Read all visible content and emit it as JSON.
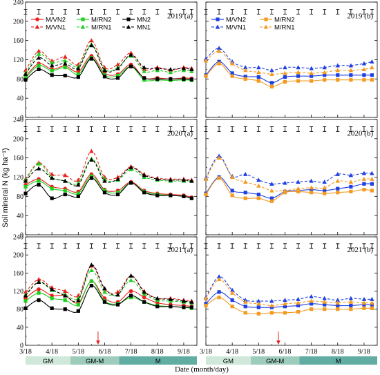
{
  "figure": {
    "ylabel": "Soil mineral N (kg ha⁻¹)",
    "xlabel": "Date (month/day)",
    "stage_band": [
      {
        "label": "GM",
        "from": 0,
        "to": 1.7,
        "color": "#cfe8da"
      },
      {
        "label": "GM-M",
        "from": 1.7,
        "to": 3.55,
        "color": "#9dccbd"
      },
      {
        "label": "M",
        "from": 3.55,
        "to": 6.5,
        "color": "#62ada3"
      }
    ]
  },
  "chart_data": [
    {
      "type": "line",
      "panel": "a",
      "title": "2019 (a)",
      "xticks": [
        "3/18",
        "4/18",
        "5/18",
        "6/18",
        "7/18",
        "8/18",
        "9/18"
      ],
      "xlim": [
        0,
        6.5
      ],
      "yticks": [
        0,
        40,
        80,
        120,
        160,
        200,
        240
      ],
      "ylim": [
        0,
        240
      ],
      "legend": "top-left",
      "x": [
        0,
        0.5,
        1,
        1.5,
        2,
        2.5,
        3,
        3.5,
        4,
        4.5,
        5,
        5.5,
        6,
        6.3
      ],
      "errorbars": {
        "x": [
          0,
          0.5,
          1,
          1.5,
          2,
          2.5,
          3,
          3.5,
          4,
          4.5,
          5,
          5.5,
          6,
          6.3
        ],
        "half": 5,
        "center": 220
      },
      "series": [
        {
          "name": "M/VN2",
          "values": [
            85,
            112,
            100,
            107,
            95,
            128,
            92,
            90,
            110,
            82,
            82,
            80,
            82,
            81
          ],
          "color": "#e8201e",
          "marker": "circle",
          "dashed": false
        },
        {
          "name": "M/RN2",
          "values": [
            82,
            108,
            97,
            104,
            90,
            124,
            88,
            87,
            106,
            78,
            78,
            77,
            78,
            77
          ],
          "color": "#20d020",
          "marker": "square",
          "dashed": false
        },
        {
          "name": "MN2",
          "values": [
            78,
            100,
            88,
            87,
            84,
            122,
            85,
            82,
            106,
            82,
            80,
            80,
            80,
            79
          ],
          "color": "#000000",
          "marker": "square",
          "dashed": false
        },
        {
          "name": "M/VN1",
          "values": [
            98,
            138,
            118,
            126,
            110,
            160,
            104,
            110,
            134,
            100,
            104,
            98,
            104,
            102
          ],
          "color": "#e8201e",
          "marker": "triangle",
          "dashed": true
        },
        {
          "name": "M/RN1",
          "values": [
            92,
            132,
            114,
            118,
            106,
            152,
            100,
            104,
            128,
            96,
            98,
            94,
            98,
            96
          ],
          "color": "#20d020",
          "marker": "triangle",
          "dashed": true
        },
        {
          "name": "MN1",
          "values": [
            90,
            124,
            108,
            112,
            102,
            150,
            98,
            102,
            130,
            104,
            102,
            100,
            102,
            100
          ],
          "color": "#000000",
          "marker": "triangle",
          "dashed": true
        }
      ]
    },
    {
      "type": "line",
      "panel": "b",
      "title": "2019 (b)",
      "xticks": [
        "3/18",
        "4/18",
        "5/18",
        "6/18",
        "7/18",
        "8/18",
        "9/18"
      ],
      "xlim": [
        0,
        6.5
      ],
      "yticks": [
        0,
        40,
        80,
        120,
        160,
        200,
        240
      ],
      "ylim": [
        0,
        240
      ],
      "legend": "top-left",
      "x": [
        0,
        0.5,
        1,
        1.5,
        2,
        2.5,
        3,
        3.5,
        4,
        4.5,
        5,
        5.5,
        6,
        6.3
      ],
      "errorbars": {
        "x": [
          0,
          0.5,
          1,
          1.5,
          2,
          2.5,
          3,
          3.5,
          4,
          4.5,
          5,
          5.5,
          6,
          6.3
        ],
        "half": 5,
        "center": 220
      },
      "series": [
        {
          "name": "M/VN2",
          "values": [
            88,
            116,
            92,
            85,
            84,
            72,
            84,
            86,
            86,
            88,
            88,
            88,
            88,
            88
          ],
          "color": "#1f3fe0",
          "marker": "square",
          "dashed": false
        },
        {
          "name": "M/RN2",
          "values": [
            86,
            112,
            86,
            80,
            76,
            64,
            74,
            76,
            76,
            78,
            78,
            78,
            78,
            78
          ],
          "color": "#f39a21",
          "marker": "square",
          "dashed": false
        },
        {
          "name": "M/VN1",
          "values": [
            122,
            144,
            116,
            104,
            104,
            98,
            104,
            104,
            102,
            104,
            108,
            108,
            112,
            116
          ],
          "color": "#1f3fe0",
          "marker": "triangle",
          "dashed": true
        },
        {
          "name": "M/RN1",
          "values": [
            118,
            138,
            112,
            98,
            94,
            90,
            92,
            94,
            92,
            94,
            98,
            98,
            100,
            104
          ],
          "color": "#f39a21",
          "marker": "triangle",
          "dashed": true
        }
      ]
    },
    {
      "type": "line",
      "panel": "a",
      "title": "2020 (a)",
      "xticks": [
        "3/18",
        "4/18",
        "5/18",
        "6/18",
        "7/18",
        "8/18",
        "9/18"
      ],
      "xlim": [
        0,
        6.5
      ],
      "yticks": [
        0,
        40,
        80,
        120,
        160,
        200,
        240
      ],
      "ylim": [
        0,
        240
      ],
      "x": [
        0,
        0.5,
        1,
        1.5,
        2,
        2.5,
        3,
        3.5,
        4,
        4.5,
        5,
        5.5,
        6,
        6.3
      ],
      "errorbars": {
        "x": [
          0,
          0.5,
          1,
          1.5,
          2,
          2.5,
          3,
          3.5,
          4,
          4.5,
          5,
          5.5,
          6,
          6.3
        ],
        "half": 5,
        "center": 220
      },
      "series": [
        {
          "name": "M/VN2",
          "values": [
            104,
            116,
            100,
            96,
            90,
            126,
            94,
            92,
            110,
            92,
            86,
            84,
            82,
            78
          ],
          "color": "#e8201e",
          "marker": "circle",
          "dashed": false
        },
        {
          "name": "M/RN2",
          "values": [
            100,
            112,
            96,
            92,
            86,
            122,
            92,
            88,
            108,
            90,
            84,
            82,
            80,
            76
          ],
          "color": "#20d020",
          "marker": "square",
          "dashed": false
        },
        {
          "name": "MN2",
          "values": [
            86,
            104,
            76,
            84,
            80,
            118,
            88,
            84,
            108,
            88,
            82,
            82,
            80,
            76
          ],
          "color": "#000000",
          "marker": "square",
          "dashed": false
        },
        {
          "name": "M/VN1",
          "values": [
            116,
            150,
            126,
            124,
            114,
            174,
            120,
            120,
            142,
            126,
            118,
            116,
            116,
            114
          ],
          "color": "#e8201e",
          "marker": "triangle",
          "dashed": true
        },
        {
          "name": "M/RN1",
          "values": [
            114,
            148,
            120,
            112,
            108,
            158,
            116,
            114,
            136,
            120,
            114,
            112,
            112,
            112
          ],
          "color": "#20d020",
          "marker": "triangle",
          "dashed": true
        },
        {
          "name": "MN1",
          "values": [
            112,
            138,
            118,
            112,
            104,
            156,
            112,
            116,
            140,
            124,
            116,
            114,
            114,
            112
          ],
          "color": "#000000",
          "marker": "triangle",
          "dashed": true
        }
      ]
    },
    {
      "type": "line",
      "panel": "b",
      "title": "2020 (b)",
      "xticks": [
        "3/18",
        "4/18",
        "5/18",
        "6/18",
        "7/18",
        "8/18",
        "9/18"
      ],
      "xlim": [
        0,
        6.5
      ],
      "yticks": [
        0,
        40,
        80,
        120,
        160,
        200,
        240
      ],
      "ylim": [
        0,
        240
      ],
      "x": [
        0,
        0.5,
        1,
        1.5,
        2,
        2.5,
        3,
        3.5,
        4,
        4.5,
        5,
        5.5,
        6,
        6.3
      ],
      "errorbars": {
        "x": [
          0,
          0.5,
          1,
          1.5,
          2,
          2.5,
          3,
          3.5,
          4,
          4.5,
          5,
          5.5,
          6,
          6.3
        ],
        "half": 5,
        "center": 220
      },
      "series": [
        {
          "name": "M/VN2",
          "values": [
            86,
            120,
            92,
            88,
            84,
            76,
            90,
            92,
            94,
            92,
            96,
            100,
            106,
            106
          ],
          "color": "#1f3fe0",
          "marker": "square",
          "dashed": false
        },
        {
          "name": "M/RN2",
          "values": [
            84,
            118,
            82,
            76,
            76,
            70,
            88,
            90,
            88,
            86,
            88,
            90,
            94,
            92
          ],
          "color": "#f39a21",
          "marker": "square",
          "dashed": false
        },
        {
          "name": "M/VN1",
          "values": [
            118,
            164,
            122,
            126,
            114,
            106,
            108,
            110,
            112,
            110,
            126,
            124,
            128,
            128
          ],
          "color": "#1f3fe0",
          "marker": "triangle",
          "dashed": true
        },
        {
          "name": "M/RN1",
          "values": [
            116,
            160,
            120,
            110,
            102,
            92,
            92,
            96,
            98,
            98,
            112,
            110,
            116,
            116
          ],
          "color": "#f39a21",
          "marker": "triangle",
          "dashed": true
        }
      ]
    },
    {
      "type": "line",
      "panel": "a",
      "title": "2021 (a)",
      "xticks": [
        "3/18",
        "4/18",
        "5/18",
        "6/18",
        "7/18",
        "8/18",
        "9/18"
      ],
      "xlim": [
        0,
        6.5
      ],
      "yticks": [
        0,
        40,
        80,
        120,
        160,
        200,
        240
      ],
      "ylim": [
        0,
        240
      ],
      "x": [
        0,
        0.5,
        1,
        1.5,
        2,
        2.5,
        3,
        3.5,
        4,
        4.5,
        5,
        5.5,
        6,
        6.3
      ],
      "errorbars": {
        "x": [
          0,
          0.5,
          1,
          1.5,
          2,
          2.5,
          3,
          3.5,
          4,
          4.5,
          5,
          5.5,
          6,
          6.3
        ],
        "half": 5,
        "center": 220
      },
      "series": [
        {
          "name": "M/VN2",
          "values": [
            104,
            124,
            110,
            110,
            94,
            142,
            104,
            96,
            120,
            106,
            94,
            90,
            88,
            86
          ],
          "color": "#e8201e",
          "marker": "circle",
          "dashed": false
        },
        {
          "name": "M/RN2",
          "values": [
            98,
            116,
            104,
            100,
            90,
            142,
            98,
            92,
            106,
            96,
            88,
            86,
            84,
            82
          ],
          "color": "#20d020",
          "marker": "square",
          "dashed": false
        },
        {
          "name": "MN2",
          "values": [
            82,
            100,
            82,
            80,
            76,
            132,
            96,
            90,
            110,
            96,
            86,
            86,
            84,
            84
          ],
          "color": "#000000",
          "marker": "square",
          "dashed": false
        },
        {
          "name": "M/VN1",
          "values": [
            118,
            146,
            128,
            120,
            110,
            176,
            124,
            118,
            154,
            120,
            104,
            104,
            100,
            98
          ],
          "color": "#e8201e",
          "marker": "triangle",
          "dashed": true
        },
        {
          "name": "M/RN1",
          "values": [
            112,
            140,
            122,
            112,
            104,
            166,
            118,
            112,
            144,
            114,
            100,
            98,
            96,
            94
          ],
          "color": "#20d020",
          "marker": "triangle",
          "dashed": true
        },
        {
          "name": "MN1",
          "values": [
            110,
            140,
            124,
            110,
            100,
            178,
            126,
            112,
            154,
            118,
            104,
            102,
            98,
            96
          ],
          "color": "#000000",
          "marker": "triangle",
          "dashed": true
        }
      ]
    },
    {
      "type": "line",
      "panel": "b",
      "title": "2021 (b)",
      "xticks": [
        "3/18",
        "4/18",
        "5/18",
        "6/18",
        "7/18",
        "8/18",
        "9/18"
      ],
      "xlim": [
        0,
        6.5
      ],
      "yticks": [
        0,
        40,
        80,
        120,
        160,
        200,
        240
      ],
      "ylim": [
        0,
        240
      ],
      "x": [
        0,
        0.5,
        1,
        1.5,
        2,
        2.5,
        3,
        3.5,
        4,
        4.5,
        5,
        5.5,
        6,
        6.3
      ],
      "errorbars": {
        "x": [
          0,
          0.5,
          1,
          1.5,
          2,
          2.5,
          3,
          3.5,
          4,
          4.5,
          5,
          5.5,
          6,
          6.3
        ],
        "half": 5,
        "center": 220
      },
      "series": [
        {
          "name": "M/VN2",
          "values": [
            92,
            118,
            100,
            86,
            84,
            84,
            86,
            88,
            92,
            90,
            88,
            88,
            90,
            90
          ],
          "color": "#1f3fe0",
          "marker": "square",
          "dashed": false
        },
        {
          "name": "M/RN2",
          "values": [
            88,
            106,
            86,
            72,
            70,
            72,
            72,
            74,
            80,
            80,
            80,
            80,
            82,
            82
          ],
          "color": "#f39a21",
          "marker": "square",
          "dashed": false
        },
        {
          "name": "M/VN1",
          "values": [
            106,
            152,
            122,
            100,
            98,
            98,
            100,
            102,
            108,
            104,
            100,
            104,
            102,
            102
          ],
          "color": "#1f3fe0",
          "marker": "triangle",
          "dashed": true
        },
        {
          "name": "M/RN1",
          "values": [
            104,
            146,
            116,
            96,
            92,
            88,
            92,
            94,
            98,
            96,
            94,
            96,
            94,
            94
          ],
          "color": "#f39a21",
          "marker": "triangle",
          "dashed": true
        }
      ]
    }
  ],
  "arrows": [
    {
      "panel": "a",
      "x": 2.75
    },
    {
      "panel": "b",
      "x": 2.75
    }
  ]
}
